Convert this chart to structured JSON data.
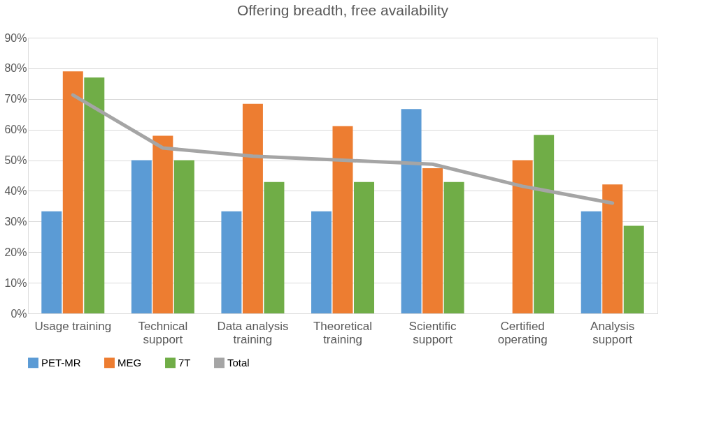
{
  "chart_data": {
    "type": "bar",
    "title": "Offering breadth, free availability",
    "categories": [
      "Usage training",
      "Technical support",
      "Data analysis training",
      "Theoretical training",
      "Scientific support",
      "Certified operating",
      "Analysis support"
    ],
    "series": [
      {
        "name": "PET-MR",
        "color": "#5b9bd5",
        "values": [
          33.3,
          50,
          33.3,
          33.3,
          66.7,
          0,
          33.3
        ]
      },
      {
        "name": "MEG",
        "color": "#ed7d31",
        "values": [
          79,
          58,
          68.4,
          61.1,
          47.4,
          50,
          42.1
        ]
      },
      {
        "name": "7T",
        "color": "#70ad47",
        "values": [
          77,
          50,
          42.9,
          42.9,
          42.9,
          58.3,
          28.6
        ]
      },
      {
        "name": "Total",
        "color": "#a5a5a5",
        "type": "line",
        "values": [
          71.3,
          54,
          51.3,
          50,
          48.7,
          41.5,
          36
        ]
      }
    ],
    "ylim": [
      0,
      90
    ],
    "yticks": [
      {
        "value": 0,
        "label": "0%"
      },
      {
        "value": 10,
        "label": "10%"
      },
      {
        "value": 20,
        "label": "20%"
      },
      {
        "value": 30,
        "label": "30%"
      },
      {
        "value": 40,
        "label": "40%"
      },
      {
        "value": 50,
        "label": "50%"
      },
      {
        "value": 60,
        "label": "60%"
      },
      {
        "value": 70,
        "label": "70%"
      },
      {
        "value": 80,
        "label": "80%"
      },
      {
        "value": 90,
        "label": "90%"
      }
    ],
    "grid": "y",
    "legend": "bottom"
  }
}
